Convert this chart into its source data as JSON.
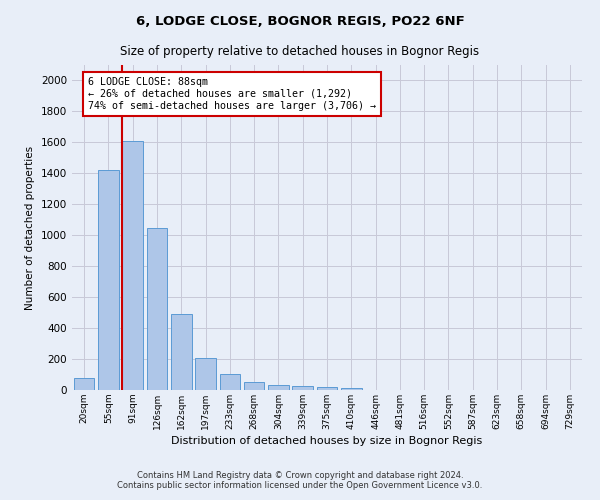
{
  "title": "6, LODGE CLOSE, BOGNOR REGIS, PO22 6NF",
  "subtitle": "Size of property relative to detached houses in Bognor Regis",
  "xlabel": "Distribution of detached houses by size in Bognor Regis",
  "ylabel": "Number of detached properties",
  "categories": [
    "20sqm",
    "55sqm",
    "91sqm",
    "126sqm",
    "162sqm",
    "197sqm",
    "233sqm",
    "268sqm",
    "304sqm",
    "339sqm",
    "375sqm",
    "410sqm",
    "446sqm",
    "481sqm",
    "516sqm",
    "552sqm",
    "587sqm",
    "623sqm",
    "658sqm",
    "694sqm",
    "729sqm"
  ],
  "values": [
    80,
    1420,
    1610,
    1050,
    490,
    205,
    105,
    50,
    35,
    25,
    20,
    15,
    0,
    0,
    0,
    0,
    0,
    0,
    0,
    0,
    0
  ],
  "bar_color": "#aec6e8",
  "bar_edge_color": "#5b9bd5",
  "red_line_x": 2,
  "annotation_text": "6 LODGE CLOSE: 88sqm\n← 26% of detached houses are smaller (1,292)\n74% of semi-detached houses are larger (3,706) →",
  "annotation_box_color": "#ffffff",
  "annotation_box_edge_color": "#cc0000",
  "ylim": [
    0,
    2100
  ],
  "yticks": [
    0,
    200,
    400,
    600,
    800,
    1000,
    1200,
    1400,
    1600,
    1800,
    2000
  ],
  "grid_color": "#c8c8d8",
  "footer_line1": "Contains HM Land Registry data © Crown copyright and database right 2024.",
  "footer_line2": "Contains public sector information licensed under the Open Government Licence v3.0.",
  "bg_color": "#e8eef8",
  "axes_bg_color": "#e8eef8"
}
